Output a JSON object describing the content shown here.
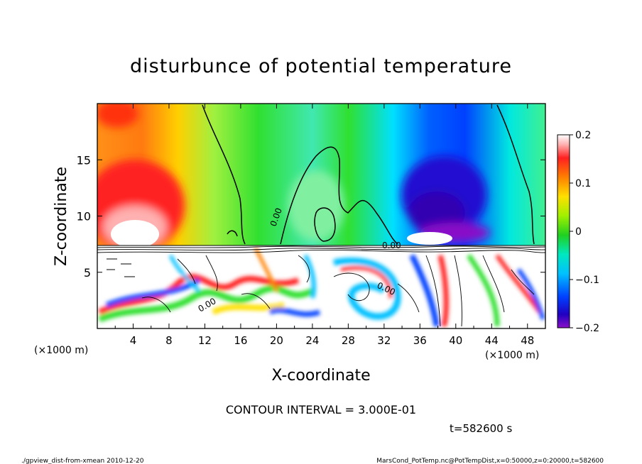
{
  "chart_data": {
    "type": "heatmap",
    "title": "disturbunce of potential temperature",
    "xlabel": "X-coordinate",
    "ylabel": "Z-coordinate",
    "x_unit": "(×1000 m)",
    "y_unit": "(×1000 m)",
    "xlim": [
      0,
      50
    ],
    "ylim": [
      0,
      20
    ],
    "x_ticks": [
      4,
      8,
      12,
      16,
      20,
      24,
      28,
      32,
      36,
      40,
      44,
      48
    ],
    "y_ticks": [
      5,
      10,
      15
    ],
    "colorbar": {
      "range": [
        -0.2,
        0.2
      ],
      "tick_values": [
        0.2,
        0.1,
        0,
        -0.1,
        -0.2
      ],
      "tick_labels": [
        "0.2",
        "0.1",
        "0",
        "−0.1",
        "−0.2"
      ]
    },
    "contour_label": "0.00",
    "contour_interval": "CONTOUR INTERVAL = 3.000E-01",
    "time_label": "t=582600 s",
    "colors": {
      "strong_positive": "#ffffff",
      "positive": "#ff2020",
      "zero": "#30e030",
      "negative": "#0020ff",
      "strong_negative": "#8a10c8"
    }
  },
  "footer": {
    "left": "./gpview_dist-from-xmean  2010-12-20",
    "right": "MarsCond_PotTemp.nc@PotTempDist,x=0:50000,z=0:20000,t=582600"
  }
}
